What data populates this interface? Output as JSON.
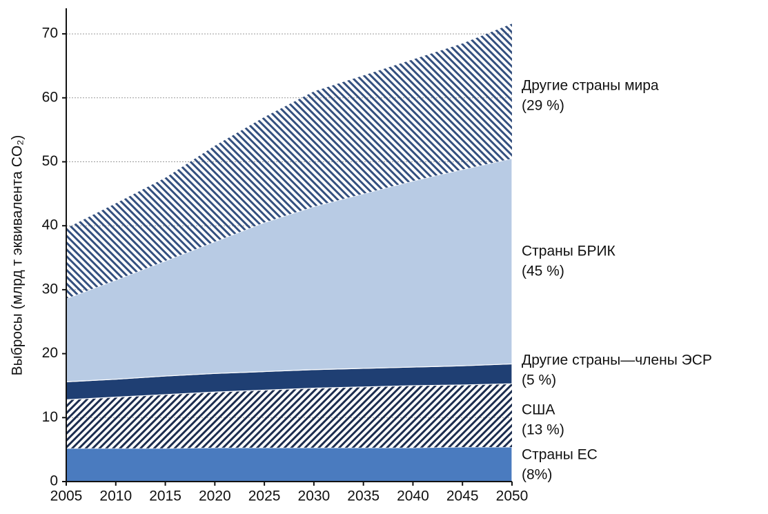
{
  "chart_data": {
    "type": "stacked_area",
    "y_label": "Выбросы (млрд т эквивалента CO₂)",
    "x": [
      2005,
      2010,
      2015,
      2020,
      2025,
      2030,
      2035,
      2040,
      2045,
      2050
    ],
    "xlim": [
      2005,
      2050
    ],
    "xticks": [
      2005,
      2010,
      2015,
      2020,
      2025,
      2030,
      2035,
      2040,
      2045,
      2050
    ],
    "ylim": [
      0,
      74
    ],
    "yticks": [
      0,
      10,
      20,
      30,
      40,
      50,
      60,
      70
    ],
    "grid": true,
    "series": [
      {
        "name": "Страны ЕС",
        "share": "(8%)",
        "color": "#4a7bbf",
        "hatch": false,
        "values": [
          5.2,
          5.2,
          5.2,
          5.3,
          5.3,
          5.3,
          5.3,
          5.3,
          5.4,
          5.4
        ]
      },
      {
        "name": "США",
        "share": "(13 %)",
        "color": "#1c2d4f",
        "hatch": true,
        "values": [
          7.6,
          8.0,
          8.4,
          8.7,
          9.0,
          9.3,
          9.5,
          9.7,
          9.7,
          9.9
        ]
      },
      {
        "name": "Другие страны—члены ЭСР",
        "share": "(5 %)",
        "color": "#1f3f73",
        "hatch": false,
        "values": [
          2.8,
          2.8,
          2.9,
          2.9,
          2.9,
          2.9,
          2.9,
          2.9,
          3.0,
          3.1
        ]
      },
      {
        "name": "Страны БРИК",
        "share": "(45 %)",
        "color": "#b8cbe4",
        "hatch": false,
        "values": [
          13.0,
          15.5,
          18.0,
          20.6,
          23.3,
          25.5,
          27.3,
          29.1,
          30.7,
          32.1
        ]
      },
      {
        "name": "Другие страны мира",
        "share": "(29 %)",
        "color": "#34507f",
        "hatch": true,
        "values": [
          11.0,
          12.0,
          13.0,
          15.0,
          16.5,
          18.0,
          18.5,
          19.0,
          19.7,
          21.1
        ]
      }
    ]
  }
}
